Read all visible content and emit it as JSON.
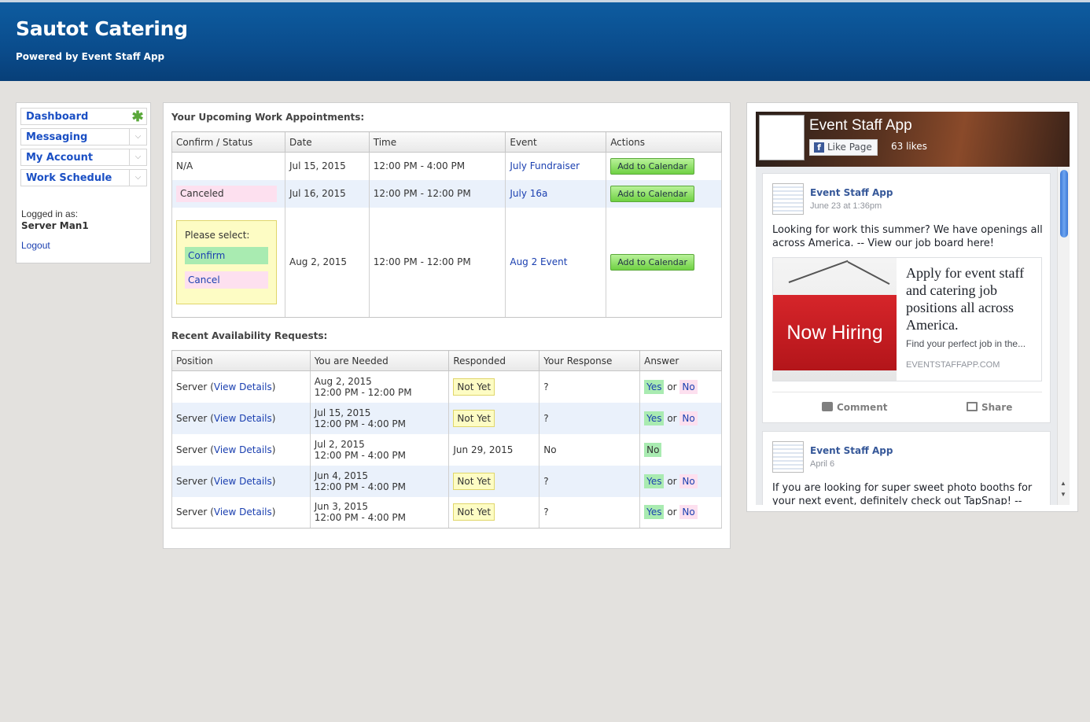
{
  "header": {
    "title": "Sautot Catering",
    "subtitle": "Powered by Event Staff App"
  },
  "sidebar": {
    "items": [
      {
        "label": "Dashboard",
        "indicator": "✱"
      },
      {
        "label": "Messaging",
        "indicator": "⌵"
      },
      {
        "label": "My Account",
        "indicator": "⌵"
      },
      {
        "label": "Work Schedule",
        "indicator": "⌵"
      }
    ],
    "logged_in_label": "Logged in as:",
    "user": "Server Man1",
    "logout": "Logout"
  },
  "appointments": {
    "title": "Your Upcoming Work Appointments:",
    "columns": [
      "Confirm / Status",
      "Date",
      "Time",
      "Event",
      "Actions"
    ],
    "rows": [
      {
        "status": "N/A",
        "date": "Jul 15, 2015",
        "time": "12:00 PM - 4:00 PM",
        "event": "July Fundraiser",
        "action": "Add to Calendar"
      },
      {
        "status": "Canceled",
        "date": "Jul 16, 2015",
        "time": "12:00 PM - 12:00 PM",
        "event": "July 16a",
        "action": "Add to Calendar"
      },
      {
        "status": "",
        "date": "Aug 2, 2015",
        "time": "12:00 PM - 12:00 PM",
        "event": "Aug 2 Event",
        "action": "Add to Calendar"
      }
    ],
    "select_prompt": "Please select:",
    "confirm": "Confirm",
    "cancel": "Cancel"
  },
  "availability": {
    "title": "Recent Availability Requests:",
    "columns": [
      "Position",
      "You are Needed",
      "Responded",
      "Your Response",
      "Answer"
    ],
    "position_label": "Server",
    "details_link": "View Details",
    "open_paren": "(",
    "close_paren": ")",
    "or": "or",
    "rows": [
      {
        "date": "Aug 2, 2015",
        "time": "12:00 PM - 12:00 PM",
        "responded": "Not Yet",
        "response": "?",
        "yes": "Yes",
        "no": "No"
      },
      {
        "date": "Jul 15, 2015",
        "time": "12:00 PM - 4:00 PM",
        "responded": "Not Yet",
        "response": "?",
        "yes": "Yes",
        "no": "No"
      },
      {
        "date": "Jul 2, 2015",
        "time": "12:00 PM - 4:00 PM",
        "responded": "Jun 29, 2015",
        "response": "No",
        "answer": "No"
      },
      {
        "date": "Jun 4, 2015",
        "time": "12:00 PM - 4:00 PM",
        "responded": "Not Yet",
        "response": "?",
        "yes": "Yes",
        "no": "No"
      },
      {
        "date": "Jun 3, 2015",
        "time": "12:00 PM - 4:00 PM",
        "responded": "Not Yet",
        "response": "?",
        "yes": "Yes",
        "no": "No"
      }
    ]
  },
  "facebook": {
    "page_name": "Event Staff App",
    "like_button": "Like Page",
    "likes": "63 likes",
    "posts": [
      {
        "author": "Event Staff App",
        "date": "June 23 at 1:36pm",
        "text": "Looking for work this summer? We have openings all across America. -- View our job board here!",
        "image_text": "Now Hiring",
        "attach_title": "Apply for event staff and catering job positions all across America.",
        "attach_desc": "Find your perfect job in the...",
        "attach_domain": "EVENTSTAFFAPP.COM",
        "comment": "Comment",
        "share": "Share"
      },
      {
        "author": "Event Staff App",
        "date": "April 6",
        "text": "If you are looking for super sweet photo booths for your next event, definitely check out TapSnap! --"
      }
    ]
  },
  "colors": {
    "header": "#0a4c8c",
    "link": "#1a3fb0",
    "confirm_bg": "#a9ebb1",
    "cancel_bg": "#fde0ef",
    "pending_bg": "#fdfcc4",
    "calendar_btn": "#6fd143"
  }
}
